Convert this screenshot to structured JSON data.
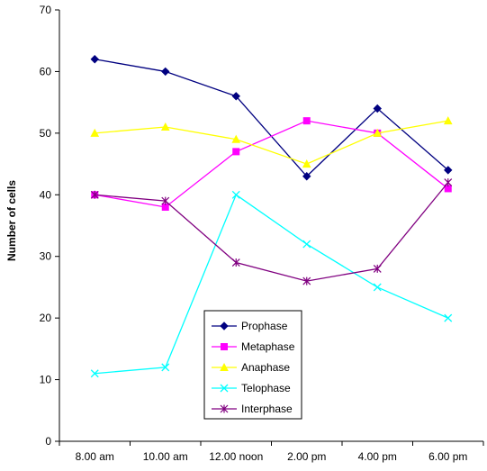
{
  "chart_data": {
    "type": "line",
    "title": "",
    "xlabel": "",
    "ylabel": "Number of cells",
    "ylim": [
      0,
      70
    ],
    "y_ticks": [
      0,
      10,
      20,
      30,
      40,
      50,
      60,
      70
    ],
    "grid": false,
    "legend_position": "bottom-center",
    "categories": [
      "8.00 am",
      "10.00 am",
      "12.00 noon",
      "2.00 pm",
      "4.00 pm",
      "6.00 pm"
    ],
    "series": [
      {
        "name": "Prophase",
        "color": "#000080",
        "marker": "diamond",
        "values": [
          62,
          60,
          56,
          43,
          54,
          44
        ]
      },
      {
        "name": "Metaphase",
        "color": "#FF00FF",
        "marker": "square",
        "values": [
          40,
          38,
          47,
          52,
          50,
          41
        ]
      },
      {
        "name": "Anaphase",
        "color": "#FFFF00",
        "marker": "triangle",
        "values": [
          50,
          51,
          49,
          45,
          50,
          52
        ]
      },
      {
        "name": "Telophase",
        "color": "#00FFFF",
        "marker": "x",
        "values": [
          11,
          12,
          40,
          32,
          25,
          20
        ]
      },
      {
        "name": "Interphase",
        "color": "#800080",
        "marker": "star",
        "values": [
          40,
          39,
          29,
          26,
          28,
          42
        ]
      }
    ]
  }
}
